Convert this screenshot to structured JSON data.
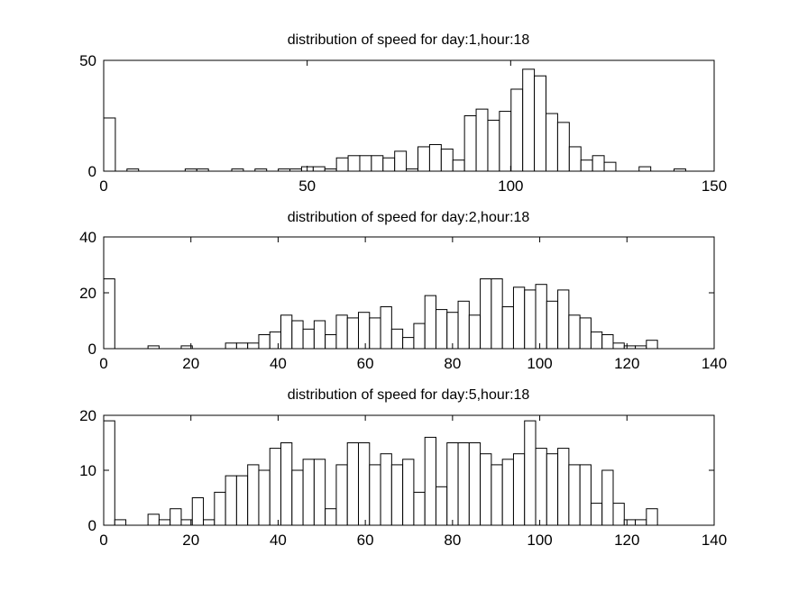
{
  "figure": {
    "background": "#ffffff"
  },
  "chart_data": [
    {
      "type": "bar",
      "title": "distribution of speed for day:1,hour:18",
      "xlabel": "",
      "ylabel": "",
      "xlim": [
        0,
        150
      ],
      "ylim": [
        0,
        50
      ],
      "xticks": [
        0,
        50,
        100,
        150
      ],
      "yticks": [
        0,
        50
      ],
      "grid": false,
      "bin_edges": [
        0,
        2.86,
        5.72,
        8.58,
        11.44,
        14.3,
        17.16,
        20.02,
        22.88,
        25.74,
        28.6,
        31.46,
        34.32,
        37.18,
        40.04,
        42.9,
        45.76,
        48.62,
        51.48,
        54.34,
        57.2,
        60.06,
        62.92,
        65.78,
        68.64,
        71.5,
        74.36,
        77.22,
        80.08,
        82.94,
        85.8,
        88.66,
        91.52,
        94.38,
        97.24,
        100.1,
        102.96,
        105.82,
        108.68,
        111.54,
        114.4,
        117.26,
        120.12,
        122.98,
        125.84,
        128.7,
        131.56,
        134.42,
        137.28,
        140.14,
        143
      ],
      "values": [
        24,
        0,
        1,
        0,
        0,
        0,
        0,
        1,
        1,
        0,
        0,
        1,
        0,
        1,
        0,
        1,
        1,
        2,
        2,
        1,
        6,
        7,
        7,
        7,
        6,
        9,
        1,
        11,
        12,
        10,
        5,
        25,
        28,
        23,
        27,
        37,
        46,
        43,
        26,
        22,
        11,
        5,
        7,
        4,
        0,
        0,
        2,
        0,
        0,
        1
      ]
    },
    {
      "type": "bar",
      "title": "distribution of speed for day:2,hour:18",
      "xlabel": "",
      "ylabel": "",
      "xlim": [
        0,
        140
      ],
      "ylim": [
        0,
        40
      ],
      "xticks": [
        0,
        20,
        40,
        60,
        80,
        100,
        120,
        140
      ],
      "yticks": [
        0,
        20,
        40
      ],
      "grid": false,
      "bin_edges": [
        0,
        2.54,
        5.08,
        7.62,
        10.16,
        12.7,
        15.24,
        17.78,
        20.32,
        22.86,
        25.4,
        27.94,
        30.48,
        33.02,
        35.56,
        38.1,
        40.64,
        43.18,
        45.72,
        48.26,
        50.8,
        53.34,
        55.88,
        58.42,
        60.96,
        63.5,
        66.04,
        68.58,
        71.12,
        73.66,
        76.2,
        78.74,
        81.28,
        83.82,
        86.36,
        88.9,
        91.44,
        93.98,
        96.52,
        99.06,
        101.6,
        104.14,
        106.68,
        109.22,
        111.76,
        114.3,
        116.84,
        119.38,
        121.92,
        124.46,
        127
      ],
      "values": [
        25,
        0,
        0,
        0,
        1,
        0,
        0,
        1,
        0,
        0,
        0,
        2,
        2,
        2,
        5,
        6,
        12,
        10,
        7,
        10,
        5,
        12,
        11,
        13,
        11,
        15,
        7,
        4,
        9,
        19,
        14,
        13,
        17,
        12,
        25,
        25,
        15,
        22,
        21,
        23,
        17,
        21,
        12,
        11,
        6,
        5,
        2,
        1,
        1,
        3
      ]
    },
    {
      "type": "bar",
      "title": "distribution of speed for day:5,hour:18",
      "xlabel": "",
      "ylabel": "",
      "xlim": [
        0,
        140
      ],
      "ylim": [
        0,
        20
      ],
      "xticks": [
        0,
        20,
        40,
        60,
        80,
        100,
        120,
        140
      ],
      "yticks": [
        0,
        10,
        20
      ],
      "grid": false,
      "bin_edges": [
        0,
        2.54,
        5.08,
        7.62,
        10.16,
        12.7,
        15.24,
        17.78,
        20.32,
        22.86,
        25.4,
        27.94,
        30.48,
        33.02,
        35.56,
        38.1,
        40.64,
        43.18,
        45.72,
        48.26,
        50.8,
        53.34,
        55.88,
        58.42,
        60.96,
        63.5,
        66.04,
        68.58,
        71.12,
        73.66,
        76.2,
        78.74,
        81.28,
        83.82,
        86.36,
        88.9,
        91.44,
        93.98,
        96.52,
        99.06,
        101.6,
        104.14,
        106.68,
        109.22,
        111.76,
        114.3,
        116.84,
        119.38,
        121.92,
        124.46,
        127
      ],
      "values": [
        19,
        1,
        0,
        0,
        2,
        1,
        3,
        1,
        5,
        1,
        6,
        9,
        9,
        11,
        10,
        14,
        15,
        10,
        12,
        12,
        3,
        11,
        15,
        15,
        11,
        13,
        11,
        12,
        6,
        16,
        7,
        15,
        15,
        15,
        13,
        11,
        12,
        13,
        19,
        14,
        13,
        14,
        11,
        11,
        4,
        10,
        4,
        1,
        1,
        3
      ]
    }
  ]
}
